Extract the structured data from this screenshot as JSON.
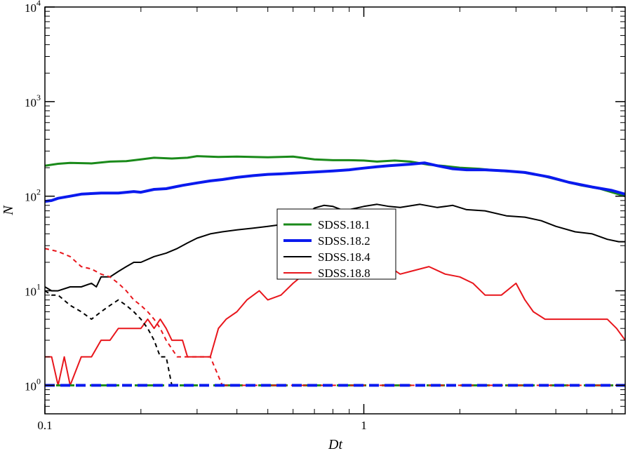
{
  "chart_data": {
    "type": "line",
    "xscale": "log",
    "yscale": "log",
    "xlim": [
      0.1,
      6.6
    ],
    "ylim": [
      0.5,
      10000
    ],
    "xlabel": "Dt",
    "ylabel": "N",
    "x_ticks": [
      {
        "value": 0.1,
        "label": "0.1"
      },
      {
        "value": 1,
        "label": "1"
      }
    ],
    "y_ticks": [
      {
        "value": 1,
        "base": "10",
        "exp": "0"
      },
      {
        "value": 10,
        "base": "10",
        "exp": "1"
      },
      {
        "value": 100,
        "base": "10",
        "exp": "2"
      },
      {
        "value": 1000,
        "base": "10",
        "exp": "3"
      },
      {
        "value": 10000,
        "base": "10",
        "exp": "4"
      }
    ],
    "legend": {
      "position": "center",
      "entries": [
        {
          "name": "SDSS.18.1",
          "color": "#1a8a1a",
          "width": 3
        },
        {
          "name": "SDSS.18.2",
          "color": "#0a1aee",
          "width": 4
        },
        {
          "name": "SDSS.18.4",
          "color": "#000000",
          "width": 2
        },
        {
          "name": "SDSS.18.8",
          "color": "#e8161c",
          "width": 2
        }
      ]
    },
    "series": [
      {
        "name": "SDSS.18.1",
        "color": "#1a8a1a",
        "width": 3,
        "dash": "",
        "points": [
          [
            0.1,
            210
          ],
          [
            0.11,
            220
          ],
          [
            0.12,
            225
          ],
          [
            0.14,
            222
          ],
          [
            0.16,
            232
          ],
          [
            0.18,
            235
          ],
          [
            0.2,
            245
          ],
          [
            0.22,
            255
          ],
          [
            0.25,
            250
          ],
          [
            0.28,
            255
          ],
          [
            0.3,
            265
          ],
          [
            0.35,
            260
          ],
          [
            0.4,
            262
          ],
          [
            0.5,
            258
          ],
          [
            0.6,
            262
          ],
          [
            0.7,
            245
          ],
          [
            0.8,
            240
          ],
          [
            0.9,
            240
          ],
          [
            1.0,
            238
          ],
          [
            1.1,
            232
          ],
          [
            1.25,
            238
          ],
          [
            1.4,
            232
          ],
          [
            1.6,
            215
          ],
          [
            1.8,
            208
          ],
          [
            2.0,
            200
          ],
          [
            2.3,
            195
          ],
          [
            2.7,
            185
          ],
          [
            3.1,
            180
          ],
          [
            3.6,
            165
          ],
          [
            4.2,
            145
          ],
          [
            4.8,
            130
          ],
          [
            5.5,
            120
          ],
          [
            6.6,
            100
          ]
        ]
      },
      {
        "name": "SDSS.18.2",
        "color": "#0a1aee",
        "width": 4,
        "dash": "",
        "points": [
          [
            0.1,
            88
          ],
          [
            0.105,
            90
          ],
          [
            0.11,
            95
          ],
          [
            0.12,
            100
          ],
          [
            0.13,
            105
          ],
          [
            0.15,
            108
          ],
          [
            0.17,
            108
          ],
          [
            0.19,
            112
          ],
          [
            0.2,
            110
          ],
          [
            0.22,
            118
          ],
          [
            0.24,
            120
          ],
          [
            0.27,
            130
          ],
          [
            0.3,
            138
          ],
          [
            0.33,
            145
          ],
          [
            0.36,
            150
          ],
          [
            0.4,
            158
          ],
          [
            0.45,
            165
          ],
          [
            0.5,
            170
          ],
          [
            0.55,
            172
          ],
          [
            0.6,
            175
          ],
          [
            0.7,
            180
          ],
          [
            0.8,
            185
          ],
          [
            0.9,
            190
          ],
          [
            1.0,
            198
          ],
          [
            1.1,
            205
          ],
          [
            1.2,
            210
          ],
          [
            1.4,
            218
          ],
          [
            1.55,
            225
          ],
          [
            1.7,
            210
          ],
          [
            1.9,
            195
          ],
          [
            2.1,
            190
          ],
          [
            2.4,
            190
          ],
          [
            2.8,
            185
          ],
          [
            3.2,
            178
          ],
          [
            3.8,
            160
          ],
          [
            4.4,
            140
          ],
          [
            5.2,
            125
          ],
          [
            6.0,
            115
          ],
          [
            6.6,
            105
          ]
        ]
      },
      {
        "name": "SDSS.18.4",
        "color": "#000000",
        "width": 2,
        "dash": "",
        "points": [
          [
            0.1,
            11
          ],
          [
            0.105,
            10
          ],
          [
            0.11,
            10
          ],
          [
            0.12,
            11
          ],
          [
            0.13,
            11
          ],
          [
            0.14,
            12
          ],
          [
            0.145,
            11
          ],
          [
            0.15,
            14
          ],
          [
            0.16,
            14
          ],
          [
            0.17,
            16
          ],
          [
            0.18,
            18
          ],
          [
            0.19,
            20
          ],
          [
            0.2,
            20
          ],
          [
            0.22,
            23
          ],
          [
            0.24,
            25
          ],
          [
            0.26,
            28
          ],
          [
            0.28,
            32
          ],
          [
            0.3,
            36
          ],
          [
            0.33,
            40
          ],
          [
            0.36,
            42
          ],
          [
            0.4,
            44
          ],
          [
            0.45,
            46
          ],
          [
            0.5,
            48
          ],
          [
            0.55,
            50
          ],
          [
            0.6,
            54
          ],
          [
            0.65,
            60
          ],
          [
            0.7,
            75
          ],
          [
            0.75,
            80
          ],
          [
            0.8,
            78
          ],
          [
            0.85,
            72
          ],
          [
            0.9,
            72
          ],
          [
            1.0,
            78
          ],
          [
            1.1,
            82
          ],
          [
            1.2,
            78
          ],
          [
            1.3,
            76
          ],
          [
            1.5,
            82
          ],
          [
            1.7,
            76
          ],
          [
            1.9,
            80
          ],
          [
            2.1,
            72
          ],
          [
            2.4,
            70
          ],
          [
            2.8,
            62
          ],
          [
            3.2,
            60
          ],
          [
            3.6,
            55
          ],
          [
            4.0,
            48
          ],
          [
            4.6,
            42
          ],
          [
            5.2,
            40
          ],
          [
            5.8,
            35
          ],
          [
            6.3,
            33
          ],
          [
            6.6,
            33
          ]
        ]
      },
      {
        "name": "SDSS.18.8",
        "color": "#e8161c",
        "width": 2,
        "dash": "",
        "points": [
          [
            0.1,
            2
          ],
          [
            0.105,
            2
          ],
          [
            0.11,
            1
          ],
          [
            0.115,
            2
          ],
          [
            0.12,
            1
          ],
          [
            0.13,
            2
          ],
          [
            0.14,
            2
          ],
          [
            0.15,
            3
          ],
          [
            0.16,
            3
          ],
          [
            0.17,
            4
          ],
          [
            0.18,
            4
          ],
          [
            0.19,
            4
          ],
          [
            0.2,
            4
          ],
          [
            0.21,
            5
          ],
          [
            0.22,
            4
          ],
          [
            0.23,
            5
          ],
          [
            0.24,
            4
          ],
          [
            0.25,
            3
          ],
          [
            0.26,
            3
          ],
          [
            0.27,
            3
          ],
          [
            0.28,
            2
          ],
          [
            0.3,
            2
          ],
          [
            0.33,
            2
          ],
          [
            0.35,
            4
          ],
          [
            0.37,
            5
          ],
          [
            0.4,
            6
          ],
          [
            0.43,
            8
          ],
          [
            0.47,
            10
          ],
          [
            0.5,
            8
          ],
          [
            0.55,
            9
          ],
          [
            0.6,
            12
          ],
          [
            0.65,
            15
          ],
          [
            0.7,
            14
          ],
          [
            0.8,
            17
          ],
          [
            0.9,
            18
          ],
          [
            1.0,
            20
          ],
          [
            1.1,
            22
          ],
          [
            1.2,
            18
          ],
          [
            1.3,
            15
          ],
          [
            1.4,
            16
          ],
          [
            1.6,
            18
          ],
          [
            1.8,
            15
          ],
          [
            2.0,
            14
          ],
          [
            2.2,
            12
          ],
          [
            2.4,
            9
          ],
          [
            2.7,
            9
          ],
          [
            3.0,
            12
          ],
          [
            3.2,
            8
          ],
          [
            3.4,
            6
          ],
          [
            3.7,
            5
          ],
          [
            4.2,
            5
          ],
          [
            5.0,
            5
          ],
          [
            5.8,
            5
          ],
          [
            6.2,
            4
          ],
          [
            6.6,
            3
          ]
        ]
      },
      {
        "name": "",
        "color": "#000000",
        "width": 2,
        "dash": "6,5",
        "points": [
          [
            0.1,
            10
          ],
          [
            0.105,
            9
          ],
          [
            0.11,
            9
          ],
          [
            0.12,
            7
          ],
          [
            0.13,
            6
          ],
          [
            0.14,
            5
          ],
          [
            0.15,
            6
          ],
          [
            0.16,
            7
          ],
          [
            0.17,
            8
          ],
          [
            0.18,
            7
          ],
          [
            0.19,
            6
          ],
          [
            0.2,
            5
          ],
          [
            0.21,
            4
          ],
          [
            0.22,
            3
          ],
          [
            0.23,
            2
          ],
          [
            0.24,
            2
          ],
          [
            0.25,
            1
          ]
        ]
      },
      {
        "name": "",
        "color": "#e8161c",
        "width": 2,
        "dash": "6,5",
        "points": [
          [
            0.1,
            28
          ],
          [
            0.11,
            26
          ],
          [
            0.12,
            23
          ],
          [
            0.13,
            18
          ],
          [
            0.14,
            17
          ],
          [
            0.15,
            15
          ],
          [
            0.16,
            14
          ],
          [
            0.17,
            12
          ],
          [
            0.18,
            10
          ],
          [
            0.19,
            8
          ],
          [
            0.2,
            7
          ],
          [
            0.21,
            6
          ],
          [
            0.22,
            5
          ],
          [
            0.23,
            4
          ],
          [
            0.24,
            3
          ],
          [
            0.26,
            2
          ],
          [
            0.3,
            2
          ],
          [
            0.33,
            2
          ],
          [
            0.36,
            1
          ]
        ]
      },
      {
        "name": "",
        "color": "#1a8a1a",
        "width": 3,
        "dash": "10,6",
        "points": [
          [
            0.1,
            1
          ],
          [
            6.6,
            1
          ]
        ]
      },
      {
        "name": "",
        "color": "#e8161c",
        "width": 2,
        "dash": "8,6",
        "points": [
          [
            0.36,
            1
          ],
          [
            6.6,
            1
          ]
        ]
      },
      {
        "name": "",
        "color": "#0a1aee",
        "width": 4,
        "dash": "14,8",
        "points": [
          [
            0.1,
            1
          ],
          [
            6.6,
            1
          ]
        ]
      }
    ]
  }
}
